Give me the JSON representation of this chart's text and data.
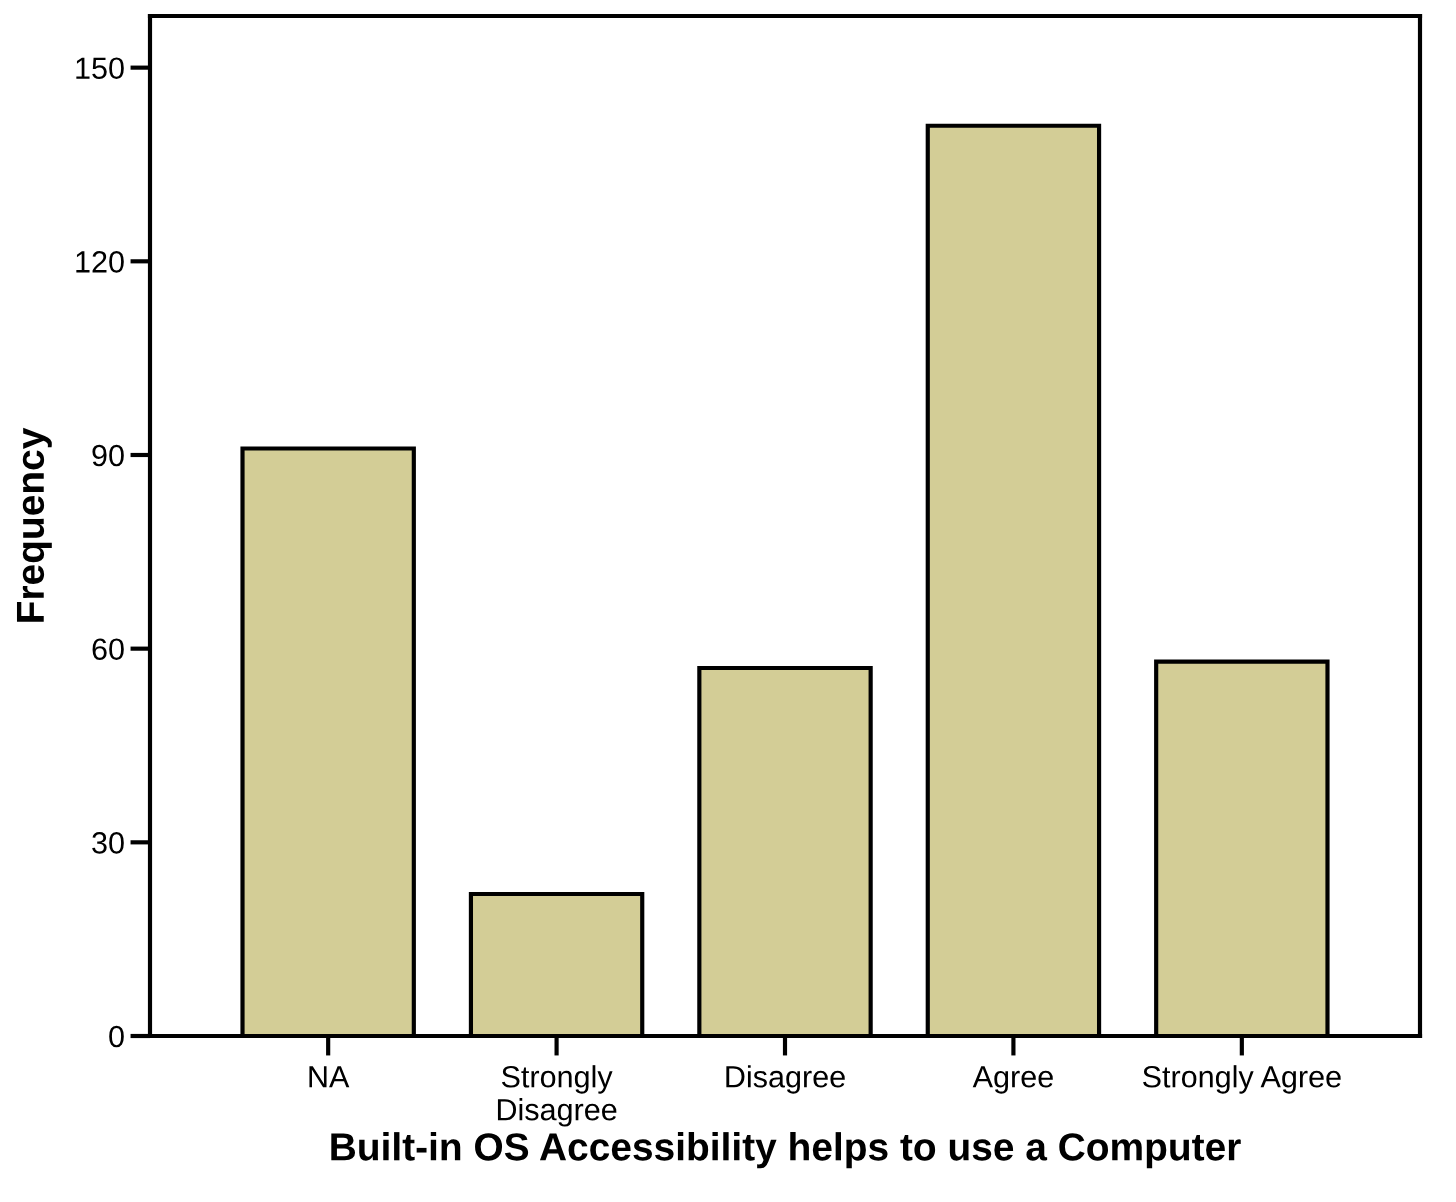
{
  "chart_data": {
    "type": "bar",
    "xlabel": "Built-in OS Accessibility helps to use a Computer",
    "ylabel": "Frequency",
    "categories": [
      "NA",
      "Strongly\nDisagree",
      "Disagree",
      "Agree",
      "Strongly Agree"
    ],
    "values": [
      91,
      22,
      57,
      141,
      58
    ],
    "color": "#d3cd96",
    "ylim": [
      0,
      158
    ],
    "yticks": [
      0,
      30,
      60,
      90,
      120,
      150
    ],
    "grid": false,
    "legend": false
  }
}
